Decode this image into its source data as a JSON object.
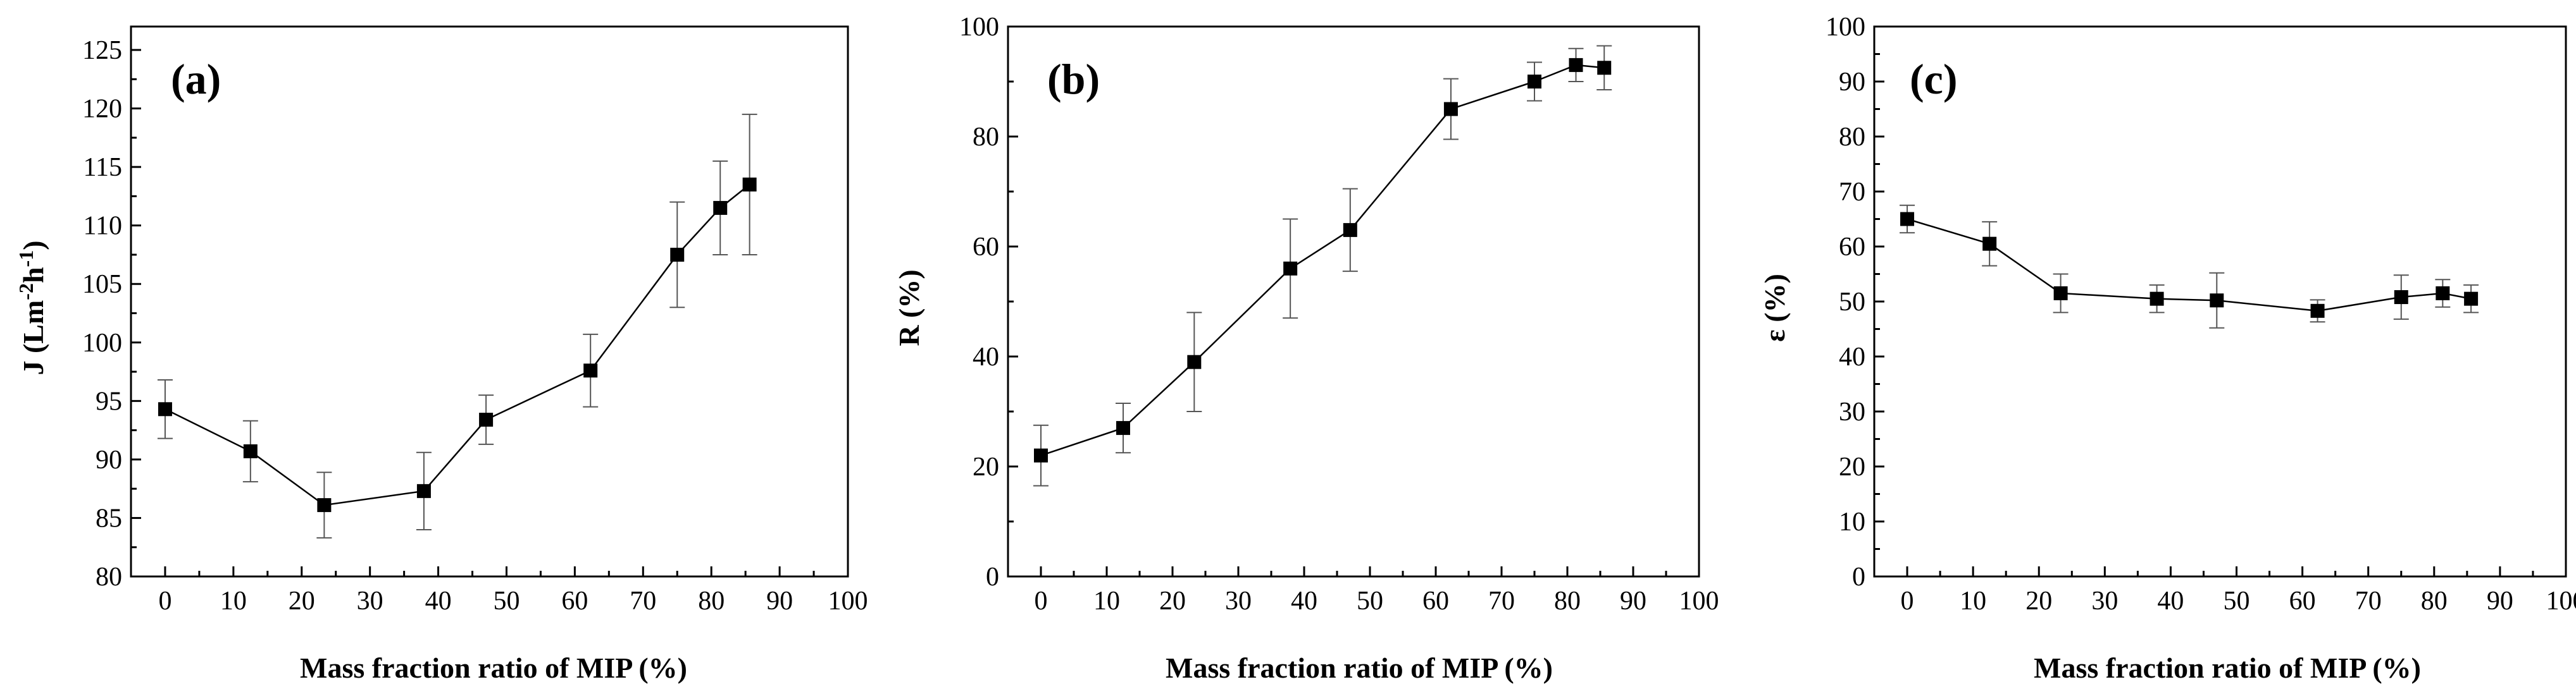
{
  "chart_data": [
    {
      "type": "line",
      "panel_label": "(a)",
      "xlabel": "Mass fraction ratio of MIP (%)",
      "ylabel_main": "J (Lm",
      "ylabel_sup1": "-2",
      "ylabel_mid": "h",
      "ylabel_sup2": "-1",
      "ylabel_end": ")",
      "xlim": [
        -5,
        100
      ],
      "ylim": [
        80,
        127
      ],
      "xticks": [
        0,
        10,
        20,
        30,
        40,
        50,
        60,
        70,
        80,
        90,
        100
      ],
      "yticks": [
        80,
        85,
        90,
        95,
        100,
        105,
        110,
        115,
        120,
        125
      ],
      "x": [
        0,
        12.5,
        23.3,
        37.9,
        47,
        62.3,
        75,
        81.3,
        85.6
      ],
      "y": [
        94.3,
        90.7,
        86.1,
        87.3,
        93.4,
        97.6,
        107.5,
        111.5,
        113.5
      ],
      "err": [
        2.5,
        2.6,
        2.8,
        3.3,
        2.1,
        3.1,
        4.5,
        4.0,
        6.0
      ]
    },
    {
      "type": "line",
      "panel_label": "(b)",
      "xlabel": "Mass fraction ratio of MIP (%)",
      "ylabel": "R (%)",
      "xlim": [
        -5,
        100
      ],
      "ylim": [
        0,
        100
      ],
      "xticks": [
        0,
        10,
        20,
        30,
        40,
        50,
        60,
        70,
        80,
        90,
        100
      ],
      "yticks": [
        0,
        20,
        40,
        60,
        80,
        100
      ],
      "x": [
        0,
        12.5,
        23.3,
        37.9,
        47,
        62.3,
        75,
        81.3,
        85.6
      ],
      "y": [
        22,
        27,
        39,
        56,
        63,
        85,
        90,
        93,
        92.5
      ],
      "err": [
        5.5,
        4.5,
        9,
        9,
        7.5,
        5.5,
        3.5,
        3,
        4
      ]
    },
    {
      "type": "line",
      "panel_label": "(c)",
      "xlabel": "Mass fraction ratio of MIP (%)",
      "ylabel": "ε (%)",
      "xlim": [
        -5,
        100
      ],
      "ylim": [
        0,
        100
      ],
      "xticks": [
        0,
        10,
        20,
        30,
        40,
        50,
        60,
        70,
        80,
        90,
        100
      ],
      "yticks": [
        0,
        10,
        20,
        30,
        40,
        50,
        60,
        70,
        80,
        90,
        100
      ],
      "x": [
        0,
        12.5,
        23.3,
        37.9,
        47,
        62.3,
        75,
        81.3,
        85.6
      ],
      "y": [
        65,
        60.5,
        51.5,
        50.5,
        50.2,
        48.3,
        50.8,
        51.5,
        50.5
      ],
      "err": [
        2.5,
        4,
        3.5,
        2.5,
        5,
        2,
        4,
        2.5,
        2.5
      ]
    }
  ]
}
